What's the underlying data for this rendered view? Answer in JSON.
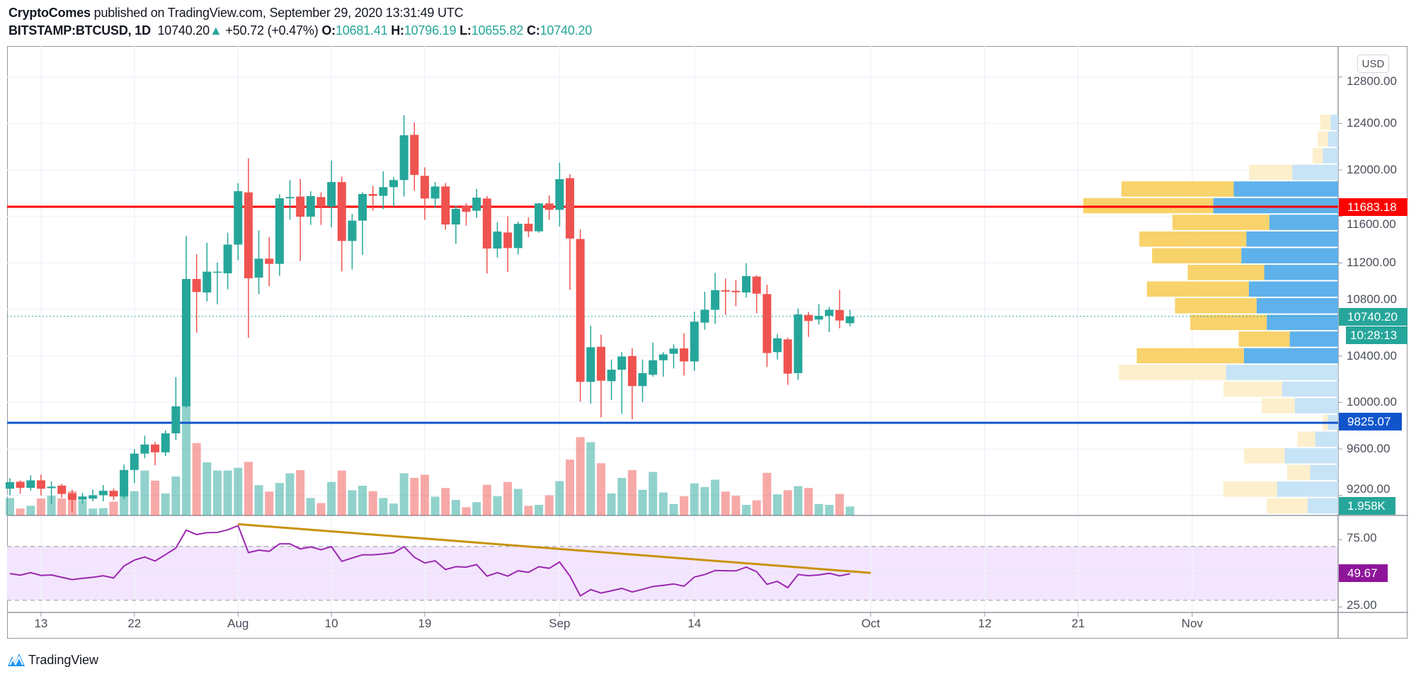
{
  "header": {
    "author": "CryptoComes",
    "published": " published on TradingView.com, September 29, 2020 13:31:49 UTC",
    "symbol": "BITSTAMP:BTCUSD, 1D",
    "last": "10740.20",
    "change_arrow": "▲",
    "change": "+50.72 (+0.47%)",
    "o_label": "O:",
    "o": "10681.41",
    "h_label": "H:",
    "h": "10796.19",
    "l_label": "L:",
    "l": "10655.82",
    "c_label": "C:",
    "c": "10740.20"
  },
  "currency_button": "USD",
  "colors": {
    "up": "#26a69a",
    "down": "#ef5350",
    "resistance": "#ff0000",
    "support": "#1155cc",
    "rsi": "#9c27b0",
    "trendline": "#c8920b",
    "profile_up": "#5eb1ea",
    "profile_down": "#f8d26a",
    "profile_up_outside": "#c7e3f6",
    "profile_down_outside": "#fdefcc"
  },
  "price_axis": {
    "ticks": [
      "12800.00",
      "12400.00",
      "12000.00",
      "11600.00",
      "11200.00",
      "10800.00",
      "10400.00",
      "10000.00",
      "9600.00",
      "9200.00"
    ],
    "range": [
      9028,
      13066
    ]
  },
  "time_axis": {
    "range": [
      "2020-07-10",
      "2020-11-15"
    ],
    "ticks": [
      {
        "date": "2020-07-13",
        "label": "13"
      },
      {
        "date": "2020-07-22",
        "label": "22"
      },
      {
        "date": "2020-08-01",
        "label": "Aug"
      },
      {
        "date": "2020-08-10",
        "label": "10"
      },
      {
        "date": "2020-08-19",
        "label": "19"
      },
      {
        "date": "2020-09-01",
        "label": "Sep"
      },
      {
        "date": "2020-09-14",
        "label": "14"
      },
      {
        "date": "2020-10-01",
        "label": "Oct"
      },
      {
        "date": "2020-10-12",
        "label": "12"
      },
      {
        "date": "2020-10-21",
        "label": "21"
      },
      {
        "date": "2020-11-01",
        "label": "Nov"
      }
    ]
  },
  "levels": {
    "resistance": {
      "price": 11683.18,
      "label": "11683.18"
    },
    "support": {
      "price": 9825.07,
      "label": "9825.07"
    },
    "last_price": {
      "price": 10740.2,
      "label": "10740.20"
    },
    "countdown": "10:28:13",
    "volume_last": "1.958K"
  },
  "candles_columns": [
    "date",
    "open",
    "high",
    "low",
    "close",
    "volume_k"
  ],
  "candles": [
    [
      "2020-07-10",
      9258,
      9347,
      9200,
      9314,
      3.8
    ],
    [
      "2020-07-11",
      9318,
      9330,
      9215,
      9265,
      1.5
    ],
    [
      "2020-07-12",
      9265,
      9374,
      9240,
      9330,
      2.1
    ],
    [
      "2020-07-13",
      9330,
      9380,
      9200,
      9258,
      3.7
    ],
    [
      "2020-07-14",
      9263,
      9320,
      9124,
      9276,
      4.3
    ],
    [
      "2020-07-15",
      9285,
      9300,
      9180,
      9213,
      3.7
    ],
    [
      "2020-07-16",
      9218,
      9250,
      9057,
      9162,
      5.3
    ],
    [
      "2020-07-17",
      9164,
      9220,
      9130,
      9191,
      3.3
    ],
    [
      "2020-07-18",
      9173,
      9250,
      9150,
      9202,
      1.5
    ],
    [
      "2020-07-19",
      9202,
      9290,
      9150,
      9240,
      1.6
    ],
    [
      "2020-07-20",
      9240,
      9260,
      9160,
      9191,
      3.0
    ],
    [
      "2020-07-21",
      9191,
      9466,
      9170,
      9419,
      5.3
    ],
    [
      "2020-07-22",
      9419,
      9598,
      9307,
      9560,
      5.3
    ],
    [
      "2020-07-23",
      9560,
      9714,
      9520,
      9638,
      9.8
    ],
    [
      "2020-07-24",
      9638,
      9660,
      9460,
      9571,
      7.6
    ],
    [
      "2020-07-25",
      9571,
      9760,
      9540,
      9734,
      4.8
    ],
    [
      "2020-07-26",
      9734,
      10219,
      9676,
      9967,
      8.5
    ],
    [
      "2020-07-27",
      9967,
      11431,
      9950,
      11062,
      25.5
    ],
    [
      "2020-07-28",
      11062,
      11274,
      10599,
      10950,
      15.8
    ],
    [
      "2020-07-29",
      10946,
      11373,
      10868,
      11125,
      11.6
    ],
    [
      "2020-07-30",
      11122,
      11203,
      10845,
      11125,
      9.8
    ],
    [
      "2020-07-31",
      11111,
      11460,
      10973,
      11358,
      9.8
    ],
    [
      "2020-08-01",
      11358,
      11886,
      11222,
      11817,
      10.4
    ],
    [
      "2020-08-02",
      11807,
      12101,
      10557,
      11068,
      11.7
    ],
    [
      "2020-08-03",
      11074,
      11480,
      10932,
      11237,
      6.6
    ],
    [
      "2020-08-04",
      11237,
      11421,
      11000,
      11192,
      5.2
    ],
    [
      "2020-08-05",
      11192,
      11791,
      11090,
      11756,
      7.1
    ],
    [
      "2020-08-06",
      11756,
      11913,
      11572,
      11767,
      9.2
    ],
    [
      "2020-08-07",
      11771,
      11923,
      11216,
      11598,
      9.9
    ],
    [
      "2020-08-08",
      11598,
      11817,
      11527,
      11775,
      3.8
    ],
    [
      "2020-08-09",
      11767,
      11807,
      11527,
      11685,
      2.7
    ],
    [
      "2020-08-10",
      11685,
      12081,
      11507,
      11896,
      7.3
    ],
    [
      "2020-08-11",
      11896,
      11943,
      11127,
      11389,
      9.8
    ],
    [
      "2020-08-12",
      11389,
      11622,
      11145,
      11564,
      5.5
    ],
    [
      "2020-08-13",
      11564,
      11807,
      11269,
      11793,
      6.5
    ],
    [
      "2020-08-14",
      11793,
      11862,
      11649,
      11777,
      5.3
    ],
    [
      "2020-08-15",
      11777,
      11988,
      11663,
      11852,
      3.8
    ],
    [
      "2020-08-16",
      11852,
      11939,
      11683,
      11913,
      2.6
    ],
    [
      "2020-08-17",
      11913,
      12471,
      11771,
      12298,
      9.2
    ],
    [
      "2020-08-18",
      12302,
      12408,
      11821,
      11957,
      8.2
    ],
    [
      "2020-08-19",
      11949,
      12022,
      11572,
      11754,
      8.9
    ],
    [
      "2020-08-20",
      11754,
      11896,
      11673,
      11858,
      4.1
    ],
    [
      "2020-08-21",
      11858,
      11888,
      11486,
      11531,
      6.0
    ],
    [
      "2020-08-22",
      11531,
      11693,
      11365,
      11665,
      3.4
    ],
    [
      "2020-08-23",
      11689,
      11714,
      11521,
      11640,
      1.8
    ],
    [
      "2020-08-24",
      11649,
      11836,
      11588,
      11762,
      2.9
    ],
    [
      "2020-08-25",
      11754,
      11775,
      11109,
      11324,
      6.7
    ],
    [
      "2020-08-26",
      11324,
      11551,
      11247,
      11470,
      4.2
    ],
    [
      "2020-08-27",
      11462,
      11602,
      11121,
      11328,
      7.3
    ],
    [
      "2020-08-28",
      11328,
      11555,
      11273,
      11537,
      5.8
    ],
    [
      "2020-08-29",
      11537,
      11592,
      11421,
      11472,
      2.1
    ],
    [
      "2020-08-30",
      11472,
      11716,
      11460,
      11712,
      2.3
    ],
    [
      "2020-08-31",
      11712,
      11781,
      11572,
      11657,
      4.4
    ],
    [
      "2020-09-01",
      11657,
      12063,
      11513,
      11921,
      7.5
    ],
    [
      "2020-09-02",
      11929,
      11963,
      10970,
      11410,
      12.2
    ],
    [
      "2020-09-03",
      11406,
      11487,
      10006,
      10177,
      17.1
    ],
    [
      "2020-09-04",
      10177,
      10660,
      9990,
      10475,
      16.0
    ],
    [
      "2020-09-05",
      10479,
      10584,
      9871,
      10187,
      11.4
    ],
    [
      "2020-09-06",
      10183,
      10369,
      10020,
      10282,
      4.8
    ],
    [
      "2020-09-07",
      10282,
      10433,
      9902,
      10395,
      8.2
    ],
    [
      "2020-09-08",
      10399,
      10465,
      9855,
      10141,
      9.9
    ],
    [
      "2020-09-09",
      10141,
      10369,
      10002,
      10252,
      5.6
    ],
    [
      "2020-09-10",
      10238,
      10514,
      10222,
      10363,
      9.5
    ],
    [
      "2020-09-11",
      10363,
      10433,
      10222,
      10413,
      5.0
    ],
    [
      "2020-09-12",
      10419,
      10500,
      10292,
      10463,
      2.5
    ],
    [
      "2020-09-13",
      10465,
      10594,
      10232,
      10353,
      4.2
    ],
    [
      "2020-09-14",
      10353,
      10781,
      10272,
      10695,
      7.0
    ],
    [
      "2020-09-15",
      10687,
      10952,
      10626,
      10797,
      6.2
    ],
    [
      "2020-09-16",
      10797,
      11114,
      10677,
      10966,
      7.8
    ],
    [
      "2020-09-17",
      10966,
      11067,
      10755,
      10954,
      5.2
    ],
    [
      "2020-09-18",
      10960,
      11053,
      10828,
      10948,
      4.3
    ],
    [
      "2020-09-19",
      10946,
      11198,
      10903,
      11087,
      2.3
    ],
    [
      "2020-09-20",
      11083,
      11093,
      10767,
      10936,
      3.3
    ],
    [
      "2020-09-21",
      10932,
      11013,
      10304,
      10425,
      9.3
    ],
    [
      "2020-09-22",
      10433,
      10590,
      10369,
      10552,
      4.6
    ],
    [
      "2020-09-23",
      10542,
      10556,
      10151,
      10248,
      5.5
    ],
    [
      "2020-09-24",
      10252,
      10809,
      10195,
      10757,
      6.4
    ],
    [
      "2020-09-25",
      10753,
      10779,
      10564,
      10701,
      6.0
    ],
    [
      "2020-09-26",
      10713,
      10846,
      10669,
      10745,
      2.5
    ],
    [
      "2020-09-27",
      10745,
      10822,
      10604,
      10797,
      2.3
    ],
    [
      "2020-09-28",
      10795,
      10968,
      10638,
      10705,
      4.7
    ],
    [
      "2020-09-29",
      10681.41,
      10796.19,
      10655.82,
      10740.2,
      1.958
    ]
  ],
  "volume_profile": {
    "columns": [
      "up_volume",
      "down_volume",
      "in_value_area"
    ],
    "rows_top_to_bottom": [
      [
        3,
        4,
        false
      ],
      [
        4,
        4,
        false
      ],
      [
        6,
        4,
        false
      ],
      [
        18,
        17,
        false
      ],
      [
        41,
        44,
        true
      ],
      [
        49,
        51,
        true
      ],
      [
        27,
        38,
        true
      ],
      [
        36,
        42,
        true
      ],
      [
        38,
        35,
        true
      ],
      [
        29,
        30,
        true
      ],
      [
        35,
        40,
        true
      ],
      [
        32,
        32,
        true
      ],
      [
        28,
        30,
        true
      ],
      [
        19,
        20,
        true
      ],
      [
        37,
        42,
        true
      ],
      [
        44,
        42,
        false
      ],
      [
        22,
        23,
        false
      ],
      [
        17,
        13,
        false
      ],
      [
        4,
        2,
        false
      ],
      [
        9,
        7,
        false
      ],
      [
        21,
        16,
        false
      ],
      [
        11,
        9,
        false
      ],
      [
        24,
        21,
        false
      ],
      [
        12,
        16,
        false
      ]
    ]
  },
  "rsi": {
    "ticks": [
      "75.00",
      "25.00"
    ],
    "upper_band": 70,
    "lower_band": 30,
    "last_label": "49.67",
    "values": [
      49.8,
      48.6,
      50.5,
      48.4,
      48.8,
      47.0,
      45.3,
      46.3,
      47.0,
      48.2,
      46.5,
      55.4,
      59.8,
      62.1,
      59.1,
      63.9,
      68.8,
      82.1,
      78.8,
      80.2,
      80.4,
      82.3,
      85.4,
      65.4,
      67.2,
      66.3,
      71.9,
      71.9,
      68.1,
      69.6,
      67.5,
      69.8,
      58.9,
      61.4,
      63.7,
      63.7,
      64.4,
      65.3,
      69.8,
      61.9,
      57.7,
      59.3,
      52.8,
      54.9,
      54.6,
      56.5,
      47.9,
      50.5,
      47.9,
      51.9,
      50.7,
      54.9,
      53.7,
      58.4,
      47.9,
      33.2,
      37.9,
      35.3,
      37.0,
      38.8,
      36.1,
      38.1,
      40.2,
      41.0,
      42.1,
      40.4,
      47.2,
      49.1,
      52.1,
      51.9,
      51.8,
      54.6,
      51.2,
      41.8,
      44.0,
      39.3,
      49.1,
      48.2,
      48.8,
      50.0,
      48.1,
      49.67
    ],
    "trendline": [
      [
        "2020-08-01",
        86.5
      ],
      [
        "2020-10-01",
        50.3
      ]
    ]
  },
  "footer": {
    "brand": "TradingView"
  }
}
